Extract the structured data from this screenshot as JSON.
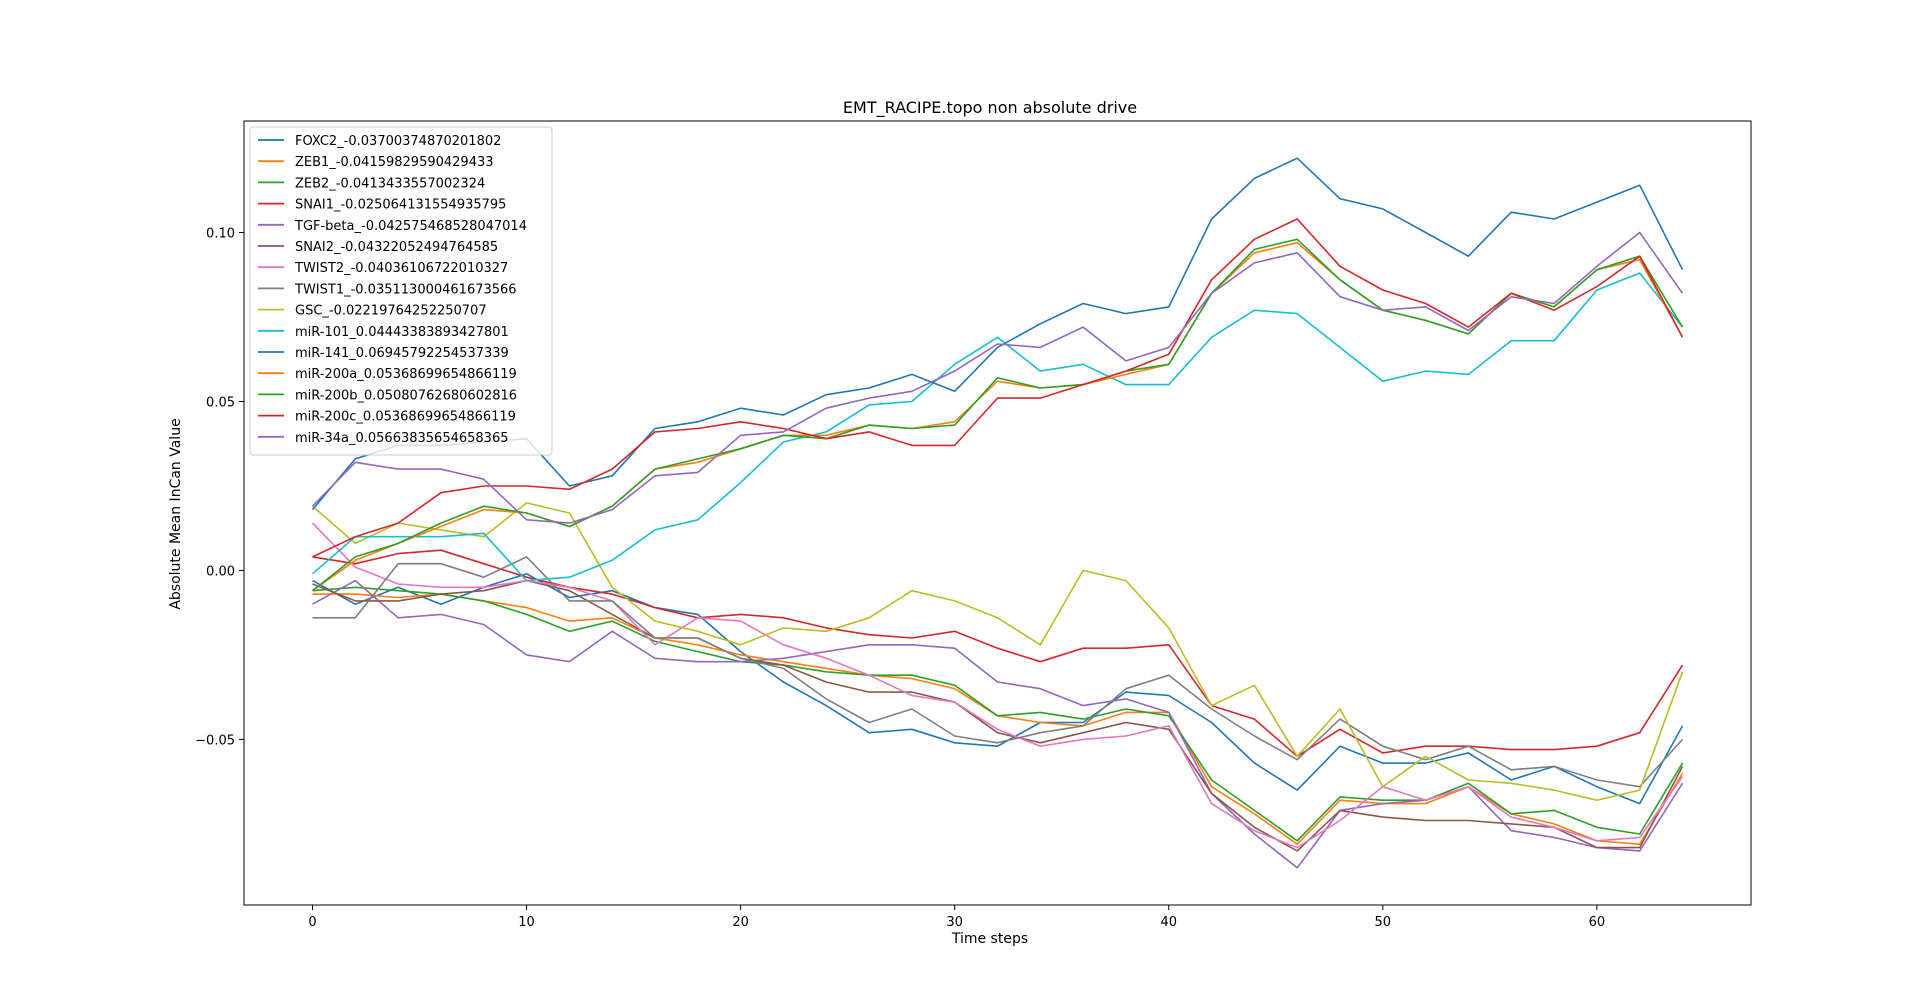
{
  "chart_data": {
    "type": "line",
    "title": "EMT_RACIPE.topo non absolute drive",
    "xlabel": "Time steps",
    "ylabel": "Absolute Mean InCan Value",
    "xlim": [
      -3.2,
      67.2
    ],
    "ylim": [
      -0.099,
      0.133
    ],
    "xticks": [
      0,
      10,
      20,
      30,
      40,
      50,
      60
    ],
    "yticks": [
      -0.05,
      0.0,
      0.05,
      0.1
    ],
    "ytick_labels": [
      "−0.05",
      "0.00",
      "0.05",
      "0.10"
    ],
    "legend": "top-left",
    "grid": false,
    "x": [
      0,
      2,
      4,
      6,
      8,
      10,
      12,
      14,
      16,
      18,
      20,
      22,
      24,
      26,
      28,
      30,
      32,
      34,
      36,
      38,
      40,
      42,
      44,
      46,
      48,
      50,
      52,
      54,
      56,
      58,
      60,
      62,
      64
    ],
    "series": [
      {
        "name": "FOXC2_-0.03700374870201802",
        "color": "#1f77b4",
        "values": [
          -0.003,
          -0.01,
          -0.005,
          -0.01,
          -0.005,
          -0.001,
          -0.008,
          -0.006,
          -0.011,
          -0.013,
          -0.024,
          -0.033,
          -0.04,
          -0.048,
          -0.047,
          -0.051,
          -0.052,
          -0.045,
          -0.045,
          -0.036,
          -0.037,
          -0.045,
          -0.057,
          -0.065,
          -0.052,
          -0.057,
          -0.057,
          -0.054,
          -0.062,
          -0.058,
          -0.064,
          -0.069,
          -0.046
        ]
      },
      {
        "name": "ZEB1_-0.04159829590429433",
        "color": "#ff7f0e",
        "values": [
          -0.007,
          -0.007,
          -0.008,
          -0.007,
          -0.009,
          -0.011,
          -0.015,
          -0.014,
          -0.02,
          -0.022,
          -0.025,
          -0.027,
          -0.029,
          -0.031,
          -0.032,
          -0.035,
          -0.043,
          -0.045,
          -0.046,
          -0.042,
          -0.042,
          -0.064,
          -0.072,
          -0.081,
          -0.068,
          -0.069,
          -0.069,
          -0.064,
          -0.072,
          -0.075,
          -0.08,
          -0.081,
          -0.06
        ]
      },
      {
        "name": "ZEB2_-0.0413433557002324",
        "color": "#2ca02c",
        "values": [
          -0.006,
          -0.005,
          -0.006,
          -0.007,
          -0.009,
          -0.013,
          -0.018,
          -0.015,
          -0.021,
          -0.024,
          -0.027,
          -0.028,
          -0.03,
          -0.031,
          -0.031,
          -0.034,
          -0.043,
          -0.042,
          -0.044,
          -0.041,
          -0.043,
          -0.062,
          -0.071,
          -0.08,
          -0.067,
          -0.068,
          -0.068,
          -0.063,
          -0.072,
          -0.071,
          -0.076,
          -0.078,
          -0.057
        ]
      },
      {
        "name": "SNAI1_-0.025064131554935795",
        "color": "#d62728",
        "values": [
          0.004,
          0.002,
          0.005,
          0.006,
          0.002,
          -0.002,
          -0.005,
          -0.007,
          -0.011,
          -0.014,
          -0.013,
          -0.014,
          -0.017,
          -0.019,
          -0.02,
          -0.018,
          -0.023,
          -0.027,
          -0.023,
          -0.023,
          -0.022,
          -0.04,
          -0.044,
          -0.055,
          -0.047,
          -0.054,
          -0.052,
          -0.052,
          -0.053,
          -0.053,
          -0.052,
          -0.048,
          -0.028
        ]
      },
      {
        "name": "TGF-beta_-0.042575468528047014",
        "color": "#9467bd",
        "values": [
          -0.01,
          -0.003,
          -0.014,
          -0.013,
          -0.016,
          -0.025,
          -0.027,
          -0.018,
          -0.026,
          -0.027,
          -0.027,
          -0.026,
          -0.024,
          -0.022,
          -0.022,
          -0.023,
          -0.033,
          -0.035,
          -0.04,
          -0.038,
          -0.042,
          -0.066,
          -0.078,
          -0.088,
          -0.071,
          -0.069,
          -0.068,
          -0.064,
          -0.077,
          -0.079,
          -0.082,
          -0.083,
          -0.063
        ]
      },
      {
        "name": "SNAI2_-0.04322052494764585",
        "color": "#8c564b",
        "values": [
          -0.004,
          -0.009,
          -0.009,
          -0.007,
          -0.006,
          -0.003,
          -0.006,
          -0.013,
          -0.02,
          -0.02,
          -0.026,
          -0.028,
          -0.033,
          -0.036,
          -0.036,
          -0.039,
          -0.048,
          -0.051,
          -0.048,
          -0.045,
          -0.047,
          -0.066,
          -0.076,
          -0.083,
          -0.071,
          -0.073,
          -0.074,
          -0.074,
          -0.075,
          -0.076,
          -0.082,
          -0.082,
          -0.058
        ]
      },
      {
        "name": "TWIST2_-0.04036106722010327",
        "color": "#e377c2",
        "values": [
          0.014,
          0.001,
          -0.004,
          -0.005,
          -0.005,
          -0.003,
          -0.005,
          -0.009,
          -0.022,
          -0.014,
          -0.015,
          -0.022,
          -0.026,
          -0.031,
          -0.037,
          -0.039,
          -0.047,
          -0.052,
          -0.05,
          -0.049,
          -0.046,
          -0.069,
          -0.077,
          -0.082,
          -0.074,
          -0.064,
          -0.068,
          -0.064,
          -0.073,
          -0.076,
          -0.08,
          -0.079,
          -0.061
        ]
      },
      {
        "name": "TWIST1_-0.035113000461673566",
        "color": "#7f7f7f",
        "values": [
          -0.014,
          -0.014,
          0.002,
          0.002,
          -0.002,
          0.004,
          -0.009,
          -0.009,
          -0.02,
          -0.02,
          -0.026,
          -0.029,
          -0.038,
          -0.045,
          -0.041,
          -0.049,
          -0.051,
          -0.048,
          -0.046,
          -0.035,
          -0.031,
          -0.041,
          -0.049,
          -0.056,
          -0.044,
          -0.052,
          -0.056,
          -0.052,
          -0.059,
          -0.058,
          -0.062,
          -0.064,
          -0.05
        ]
      },
      {
        "name": "GSC_-0.02219764252250707",
        "color": "#bcbd22",
        "values": [
          0.019,
          0.008,
          0.014,
          0.012,
          0.01,
          0.02,
          0.017,
          -0.005,
          -0.015,
          -0.018,
          -0.022,
          -0.017,
          -0.018,
          -0.014,
          -0.006,
          -0.009,
          -0.014,
          -0.022,
          0.0,
          -0.003,
          -0.017,
          -0.04,
          -0.034,
          -0.055,
          -0.041,
          -0.064,
          -0.055,
          -0.062,
          -0.063,
          -0.065,
          -0.068,
          -0.065,
          -0.03
        ]
      },
      {
        "name": "miR-101_0.04443383893427801",
        "color": "#17becf",
        "values": [
          -0.001,
          0.01,
          0.01,
          0.01,
          0.011,
          -0.003,
          -0.002,
          0.003,
          0.012,
          0.015,
          0.026,
          0.038,
          0.041,
          0.049,
          0.05,
          0.061,
          0.069,
          0.059,
          0.061,
          0.055,
          0.055,
          0.069,
          0.077,
          0.076,
          0.066,
          0.056,
          0.059,
          0.058,
          0.068,
          0.068,
          0.083,
          0.088,
          0.072
        ]
      },
      {
        "name": "miR-141_0.06945792254537339",
        "color": "#1f77b4",
        "values": [
          0.018,
          0.033,
          0.037,
          0.037,
          0.038,
          0.039,
          0.025,
          0.028,
          0.042,
          0.044,
          0.048,
          0.046,
          0.052,
          0.054,
          0.058,
          0.053,
          0.066,
          0.073,
          0.079,
          0.076,
          0.078,
          0.104,
          0.116,
          0.122,
          0.11,
          0.107,
          0.1,
          0.093,
          0.106,
          0.104,
          0.109,
          0.114,
          0.089
        ]
      },
      {
        "name": "miR-200a_0.05368699654866119",
        "color": "#ff7f0e",
        "values": [
          -0.006,
          0.003,
          0.008,
          0.013,
          0.018,
          0.017,
          0.013,
          0.019,
          0.03,
          0.032,
          0.036,
          0.04,
          0.04,
          0.043,
          0.042,
          0.044,
          0.056,
          0.054,
          0.055,
          0.058,
          0.061,
          0.082,
          0.094,
          0.097,
          0.086,
          0.077,
          0.074,
          0.07,
          0.082,
          0.078,
          0.089,
          0.092,
          0.069
        ]
      },
      {
        "name": "miR-200b_0.05080762680602816",
        "color": "#2ca02c",
        "values": [
          -0.006,
          0.004,
          0.008,
          0.014,
          0.019,
          0.017,
          0.013,
          0.019,
          0.03,
          0.033,
          0.036,
          0.04,
          0.039,
          0.043,
          0.042,
          0.043,
          0.057,
          0.054,
          0.055,
          0.059,
          0.061,
          0.082,
          0.095,
          0.098,
          0.086,
          0.077,
          0.074,
          0.07,
          0.082,
          0.078,
          0.089,
          0.093,
          0.072
        ]
      },
      {
        "name": "miR-200c_0.05368699654866119",
        "color": "#d62728",
        "values": [
          0.004,
          0.01,
          0.014,
          0.023,
          0.025,
          0.025,
          0.024,
          0.03,
          0.041,
          0.042,
          0.044,
          0.042,
          0.039,
          0.041,
          0.037,
          0.037,
          0.051,
          0.051,
          0.055,
          0.059,
          0.064,
          0.086,
          0.098,
          0.104,
          0.09,
          0.083,
          0.079,
          0.072,
          0.082,
          0.077,
          0.084,
          0.093,
          0.069
        ]
      },
      {
        "name": "miR-34a_0.05663835654658365",
        "color": "#9467bd",
        "values": [
          0.019,
          0.032,
          0.03,
          0.03,
          0.027,
          0.015,
          0.014,
          0.018,
          0.028,
          0.029,
          0.04,
          0.041,
          0.048,
          0.051,
          0.053,
          0.059,
          0.067,
          0.066,
          0.072,
          0.062,
          0.066,
          0.082,
          0.091,
          0.094,
          0.081,
          0.077,
          0.078,
          0.071,
          0.081,
          0.079,
          0.09,
          0.1,
          0.082
        ]
      }
    ]
  }
}
